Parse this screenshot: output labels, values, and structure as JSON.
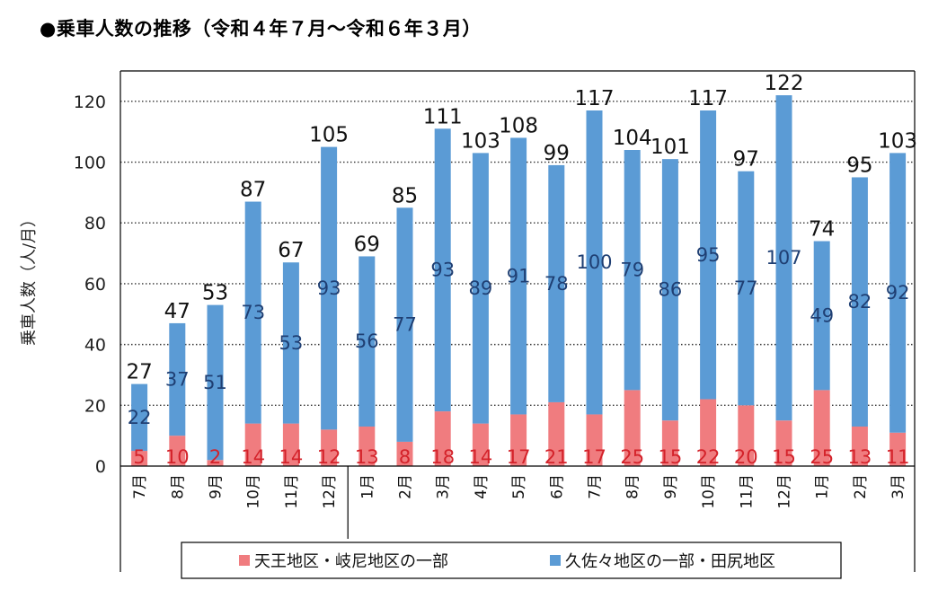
{
  "title": "●乗車人数の推移（令和４年７月～令和６年３月）",
  "chart_data": {
    "type": "bar",
    "stacked": true,
    "categories": [
      "7月",
      "8月",
      "9月",
      "10月",
      "11月",
      "12月",
      "1月",
      "2月",
      "3月",
      "4月",
      "5月",
      "6月",
      "7月",
      "8月",
      "9月",
      "10月",
      "11月",
      "12月",
      "1月",
      "2月",
      "3月"
    ],
    "series": [
      {
        "name": "天王地区・岐尼地区の一部",
        "color": "#f07c7f",
        "values": [
          5,
          10,
          2,
          14,
          14,
          12,
          13,
          8,
          18,
          14,
          17,
          21,
          17,
          25,
          15,
          22,
          20,
          15,
          25,
          13,
          11
        ]
      },
      {
        "name": "久佐々地区の一部・田尻地区",
        "color": "#5b9bd5",
        "values": [
          22,
          37,
          51,
          73,
          53,
          93,
          56,
          77,
          93,
          89,
          91,
          78,
          100,
          79,
          86,
          95,
          77,
          107,
          49,
          82,
          92
        ]
      }
    ],
    "totals": [
      27,
      47,
      53,
      87,
      67,
      105,
      69,
      85,
      111,
      103,
      108,
      99,
      117,
      104,
      101,
      117,
      97,
      122,
      74,
      95,
      103
    ],
    "ylabel": "乗車人数（人/月）",
    "ylim": [
      0,
      130
    ],
    "yticks": [
      0,
      20,
      40,
      60,
      80,
      100,
      120
    ],
    "grid": "horizontal dotted",
    "legend_position": "bottom"
  }
}
